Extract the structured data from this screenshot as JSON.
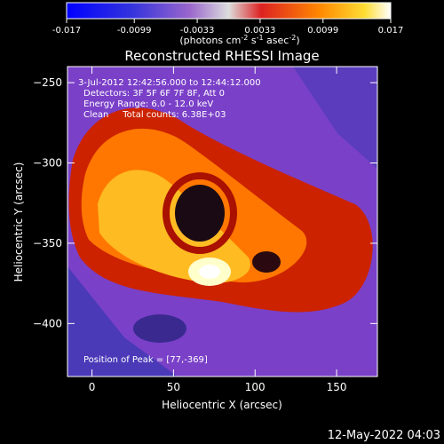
{
  "chart_data": {
    "type": "heatmap",
    "title": "Reconstructed RHESSI Image",
    "xlabel": "Heliocentric X (arcsec)",
    "ylabel": "Heliocentric Y (arcsec)",
    "xlim": [
      -15,
      175
    ],
    "ylim": [
      -433,
      -240
    ],
    "xticks": [
      0,
      50,
      100,
      150
    ],
    "yticks": [
      -250,
      -300,
      -350,
      -400
    ],
    "colorbar": {
      "min": -0.017,
      "max": 0.017,
      "ticks": [
        "-0.017",
        "-0.0099",
        "-0.0033",
        "0.0033",
        "0.0099",
        "0.017"
      ],
      "tick_values": [
        -0.017,
        -0.0099,
        -0.0033,
        0.0033,
        0.0099,
        0.017
      ],
      "unit_base": "(photons cm",
      "unit_sup1": "-2",
      "unit_mid1": " s",
      "unit_sup2": "-1",
      "unit_mid2": " asec",
      "unit_sup3": "-2",
      "unit_end": ")"
    },
    "annotations": [
      "3-Jul-2012 12:42:56.000 to 12:44:12.000",
      "Detectors: 3F 5F 6F 7F 8F, Att 0",
      "Energy Range: 6.0 - 12.0 keV",
      "Clean     Total counts: 6.38E+03"
    ],
    "peak_label": "Position of Peak = [77,-369]",
    "peak": [
      77,
      -369
    ],
    "footer_date": "12-May-2022 04:03",
    "colors": {
      "background": "#000000",
      "text": "#ffffff"
    }
  }
}
